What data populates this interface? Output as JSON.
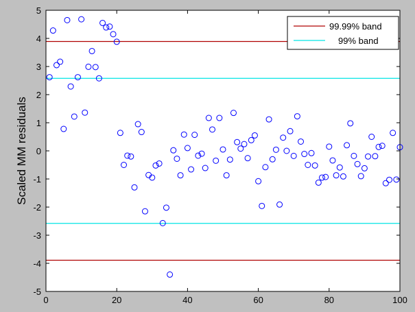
{
  "chart_data": {
    "type": "scatter",
    "title": "",
    "xlabel": "",
    "ylabel": "Scaled MM residuals",
    "xlim": [
      0,
      100
    ],
    "ylim": [
      -5,
      5
    ],
    "xticks": [
      0,
      20,
      40,
      60,
      80,
      100
    ],
    "yticks": [
      -5,
      -4,
      -3,
      -2,
      -1,
      0,
      1,
      2,
      3,
      4,
      5
    ],
    "grid": false,
    "legend_position": "top-right",
    "bands": [
      {
        "name": "99.99% band",
        "values": [
          3.89,
          -3.89
        ],
        "color": "#b00000"
      },
      {
        "name": "99% band",
        "values": [
          2.58,
          -2.58
        ],
        "color": "#00e5e5"
      }
    ],
    "series": [
      {
        "name": "Scaled MM residuals",
        "marker": "open-circle",
        "color": "#0000ff",
        "x": [
          1,
          2,
          3,
          4,
          5,
          6,
          7,
          8,
          9,
          10,
          11,
          12,
          13,
          14,
          15,
          16,
          17,
          18,
          19,
          20,
          21,
          22,
          23,
          24,
          25,
          26,
          27,
          28,
          29,
          30,
          31,
          32,
          33,
          34,
          35,
          36,
          37,
          38,
          39,
          40,
          41,
          42,
          43,
          44,
          45,
          46,
          47,
          48,
          49,
          50,
          51,
          52,
          53,
          54,
          55,
          56,
          57,
          58,
          59,
          60,
          61,
          62,
          63,
          64,
          65,
          66,
          67,
          68,
          69,
          70,
          71,
          72,
          73,
          74,
          75,
          76,
          77,
          78,
          79,
          80,
          81,
          82,
          83,
          84,
          85,
          86,
          87,
          88,
          89,
          90,
          91,
          92,
          93,
          94,
          95,
          96,
          97,
          98,
          99,
          100
        ],
        "values": [
          2.62,
          4.28,
          3.05,
          3.17,
          0.78,
          4.65,
          2.29,
          1.22,
          2.62,
          4.68,
          1.36,
          2.99,
          3.55,
          2.98,
          2.58,
          4.55,
          4.39,
          4.42,
          4.15,
          3.88,
          0.64,
          -0.5,
          -0.17,
          -0.2,
          -1.3,
          0.95,
          0.67,
          -2.15,
          -0.86,
          -0.95,
          -0.52,
          -0.45,
          -2.57,
          -2.02,
          -4.4,
          0.02,
          -0.28,
          -0.87,
          0.58,
          0.1,
          -0.66,
          0.57,
          -0.17,
          -0.1,
          -0.61,
          1.17,
          0.76,
          -0.35,
          1.17,
          0.05,
          -0.87,
          -0.31,
          1.35,
          0.31,
          0.08,
          0.24,
          -0.26,
          0.38,
          0.55,
          -1.08,
          -1.96,
          -0.58,
          1.12,
          -0.3,
          0.04,
          -1.91,
          0.47,
          0.0,
          0.7,
          -0.18,
          1.23,
          0.33,
          -0.11,
          -0.5,
          -0.08,
          -0.52,
          -1.13,
          -0.95,
          -0.93,
          0.15,
          -0.34,
          -0.87,
          -0.59,
          -0.91,
          0.2,
          0.98,
          -0.18,
          -0.47,
          -0.9,
          -0.62,
          -0.2,
          0.5,
          -0.19,
          0.14,
          0.18,
          -1.15,
          -1.03,
          0.64,
          -1.02,
          0.13
        ]
      }
    ]
  }
}
